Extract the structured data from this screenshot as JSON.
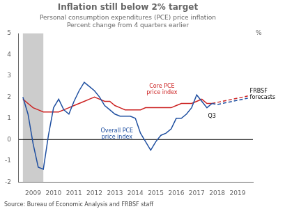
{
  "chart_data": {
    "type": "line",
    "title": "Inflation still below 2% target",
    "subtitle": [
      "Personal consumption expenditures (PCE) price inflation",
      "Percent change from 4 quarters earlier"
    ],
    "source": "Source: Bureau of Economic Analysis and FRBSF staff",
    "ylabel": "%",
    "xlim": [
      2008.3,
      2019.75
    ],
    "xticks": [
      2009,
      2010,
      2011,
      2012,
      2013,
      2014,
      2015,
      2016,
      2017,
      2018,
      2019
    ],
    "ylim": [
      -2,
      5
    ],
    "yticks": [
      -2,
      -1,
      0,
      1,
      2,
      3,
      4,
      5
    ],
    "grid": false,
    "recession": {
      "x": [
        2008.5,
        2009.5
      ],
      "color": "#cccccc"
    },
    "hline": 0,
    "series": [
      {
        "color": "#1f4fa0",
        "line_style": "solid",
        "x": [
          2008.5,
          2008.75,
          2009.0,
          2009.25,
          2009.5,
          2009.75,
          2010.0,
          2010.25,
          2010.5,
          2010.75,
          2011.0,
          2011.25,
          2011.5,
          2011.75,
          2012.0,
          2012.25,
          2012.5,
          2012.75,
          2013.0,
          2013.25,
          2013.5,
          2013.75,
          2014.0,
          2014.25,
          2014.5,
          2014.75,
          2015.0,
          2015.25,
          2015.5,
          2015.75,
          2016.0,
          2016.25,
          2016.5,
          2016.75,
          2017.0,
          2017.25,
          2017.5,
          2017.75
        ],
        "values": [
          2.0,
          1.2,
          -0.2,
          -1.3,
          -1.4,
          0.2,
          1.5,
          1.9,
          1.4,
          1.2,
          1.8,
          2.3,
          2.7,
          2.5,
          2.3,
          2.0,
          1.6,
          1.4,
          1.2,
          1.1,
          1.1,
          1.1,
          1.0,
          0.3,
          -0.1,
          -0.5,
          -0.1,
          0.2,
          0.3,
          0.5,
          1.0,
          1.0,
          1.2,
          1.5,
          2.1,
          1.8,
          1.5,
          1.7
        ]
      },
      {
        "color": "#cc2222",
        "line_style": "solid",
        "x": [
          2008.5,
          2008.75,
          2009.0,
          2009.25,
          2009.5,
          2009.75,
          2010.0,
          2010.25,
          2010.5,
          2010.75,
          2011.0,
          2011.25,
          2011.5,
          2011.75,
          2012.0,
          2012.25,
          2012.5,
          2012.75,
          2013.0,
          2013.25,
          2013.5,
          2013.75,
          2014.0,
          2014.25,
          2014.5,
          2014.75,
          2015.0,
          2015.25,
          2015.5,
          2015.75,
          2016.0,
          2016.25,
          2016.5,
          2016.75,
          2017.0,
          2017.25,
          2017.5,
          2017.75
        ],
        "values": [
          1.9,
          1.7,
          1.5,
          1.4,
          1.3,
          1.3,
          1.3,
          1.3,
          1.4,
          1.5,
          1.6,
          1.7,
          1.8,
          1.9,
          2.0,
          1.9,
          1.8,
          1.8,
          1.6,
          1.5,
          1.4,
          1.4,
          1.4,
          1.4,
          1.5,
          1.5,
          1.5,
          1.5,
          1.5,
          1.5,
          1.6,
          1.7,
          1.7,
          1.7,
          1.8,
          1.9,
          1.7,
          1.7
        ]
      },
      {
        "color": "#1f4fa0",
        "line_style": "dashed",
        "x": [
          2017.75,
          2018.0,
          2018.25,
          2018.5,
          2018.75,
          2019.0,
          2019.25,
          2019.5
        ],
        "values": [
          1.7,
          1.65,
          1.7,
          1.75,
          1.8,
          1.85,
          1.9,
          1.95
        ]
      },
      {
        "color": "#cc2222",
        "line_style": "dashed",
        "x": [
          2017.75,
          2018.0,
          2018.25,
          2018.5,
          2018.75,
          2019.0,
          2019.25,
          2019.5
        ],
        "values": [
          1.7,
          1.75,
          1.8,
          1.85,
          1.9,
          1.95,
          2.0,
          2.05
        ]
      }
    ],
    "annotations": [
      {
        "text": "Core PCE\nprice index",
        "x": 2015.3,
        "y": 2.05,
        "color": "#cc2222"
      },
      {
        "text": "Overall PCE\nprice index",
        "x": 2013.1,
        "y": 0.55,
        "color": "#1f4fa0"
      },
      {
        "text": "Q3",
        "x": 2017.55,
        "y": 1.22,
        "color": "#000000"
      },
      {
        "text": "FRBSF\nforecasts",
        "x": 2019.6,
        "y": 2.1,
        "color": "#000000"
      }
    ],
    "legend": false
  }
}
